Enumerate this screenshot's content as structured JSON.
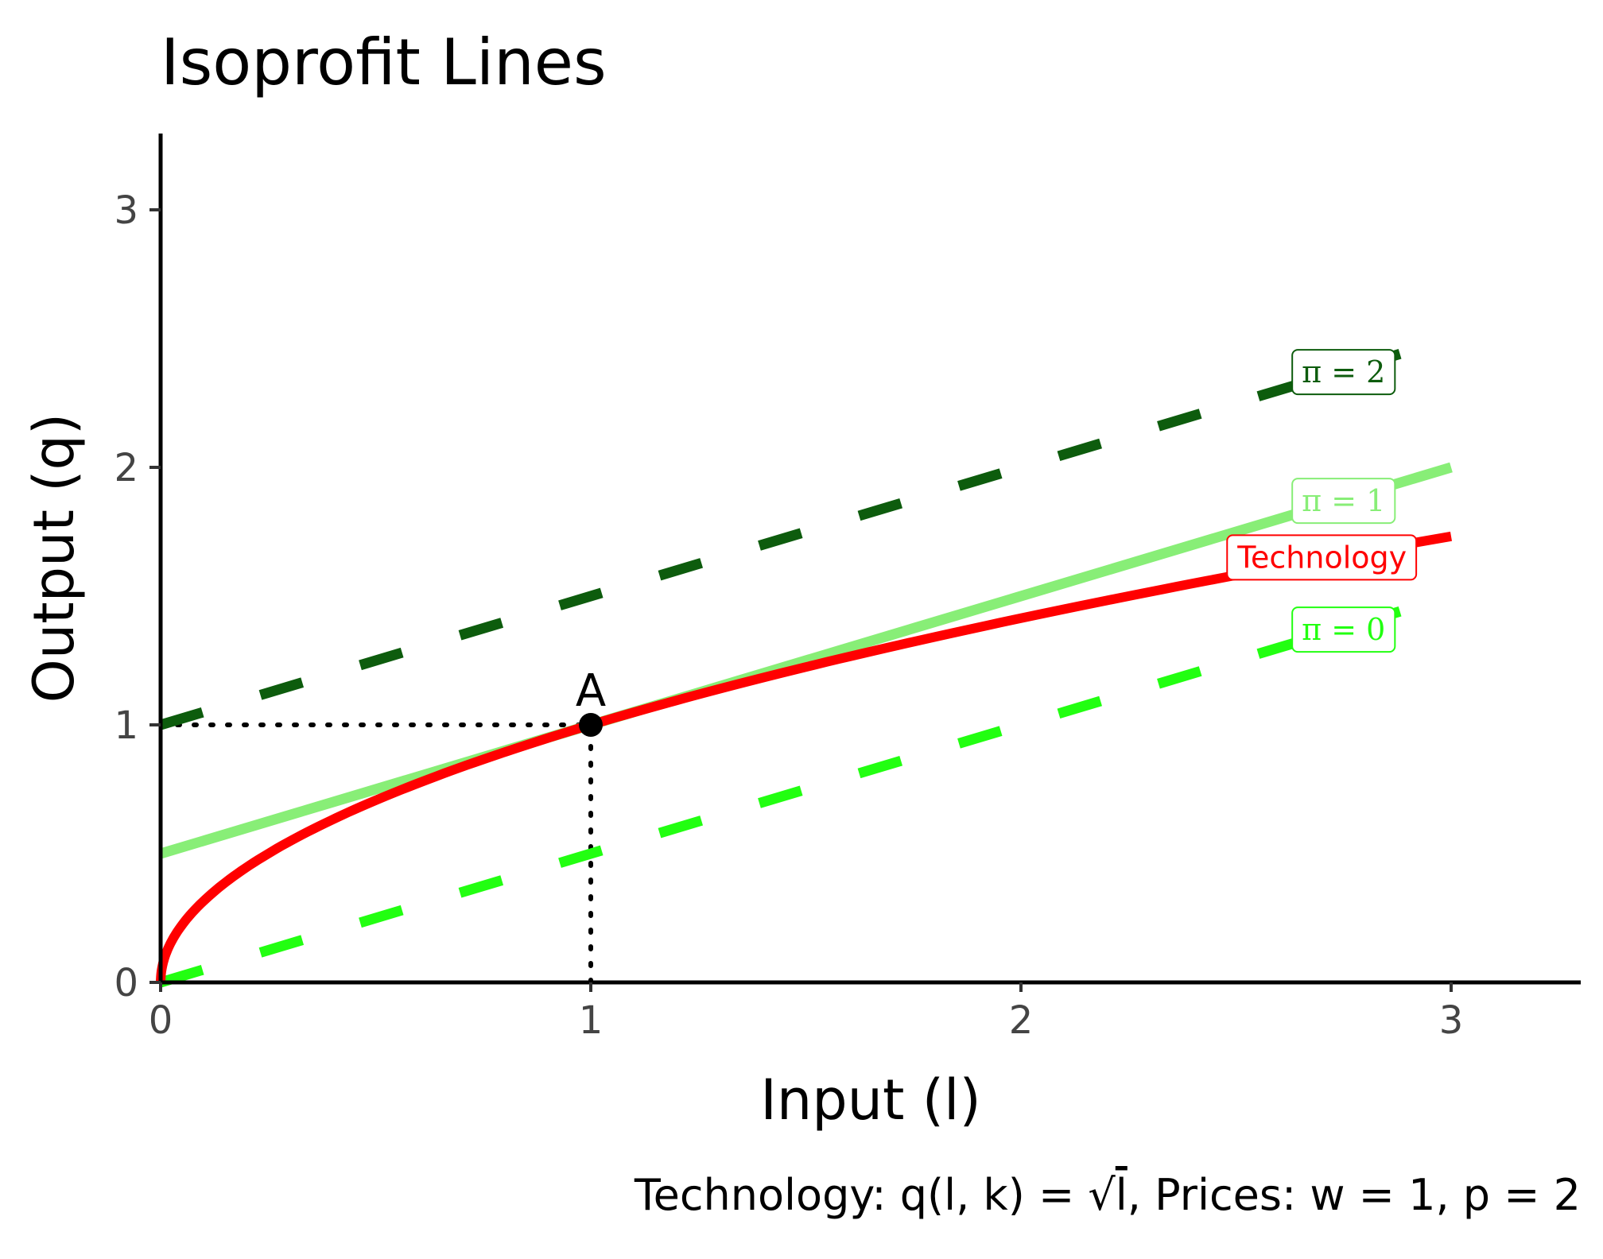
{
  "chart_data": {
    "type": "line",
    "title": "Isoprofit Lines",
    "xlabel": "Input (l)",
    "ylabel": "Output (q)",
    "caption": {
      "prefix": "Technology: q",
      "args": "l, k",
      "eq": " = ",
      "root_arg": "l",
      "suffix": ", Prices: w = 1, p = 2"
    },
    "xlim": [
      0,
      3.3
    ],
    "ylim": [
      0,
      3.3
    ],
    "x_ticks": [
      0,
      1,
      2,
      3
    ],
    "y_ticks": [
      0,
      1,
      2,
      3
    ],
    "grid": false,
    "series": [
      {
        "name": "Technology",
        "kind": "sqrt",
        "x_range": [
          0,
          3
        ],
        "color": "#ff0000",
        "dash": "solid",
        "label": "Technology",
        "label_at": [
          2.7,
          1.65
        ]
      },
      {
        "name": "π = 0",
        "kind": "linear",
        "intercept": 0,
        "slope": 0.5,
        "x_range": [
          0,
          3
        ],
        "color": "#22ff11",
        "dash": "dashed",
        "label": "π = 0",
        "label_at": [
          2.75,
          1.37
        ]
      },
      {
        "name": "π = 1",
        "kind": "linear",
        "intercept": 0.5,
        "slope": 0.5,
        "x_range": [
          0,
          3
        ],
        "color": "#88ee77",
        "dash": "solid",
        "label": "π = 1",
        "label_at": [
          2.75,
          1.87
        ]
      },
      {
        "name": "π = 2",
        "kind": "linear",
        "intercept": 1,
        "slope": 0.5,
        "x_range": [
          0,
          3
        ],
        "color": "#0d5c0d",
        "dash": "dashed",
        "label": "π = 2",
        "label_at": [
          2.75,
          2.37
        ]
      }
    ],
    "points": [
      {
        "label": "A",
        "x": 1,
        "y": 1,
        "color": "#000000"
      }
    ],
    "reference_lines": [
      {
        "from": [
          0,
          1
        ],
        "to": [
          1,
          1
        ],
        "style": "dotted",
        "color": "#000000"
      },
      {
        "from": [
          1,
          0
        ],
        "to": [
          1,
          1
        ],
        "style": "dotted",
        "color": "#000000"
      }
    ]
  }
}
